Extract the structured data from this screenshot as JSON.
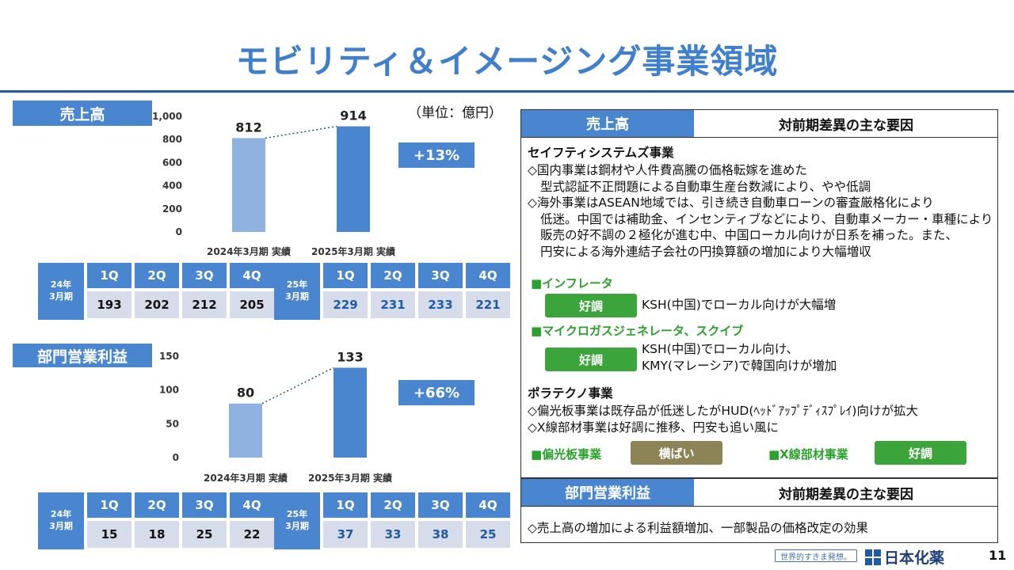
{
  "page": {
    "title": "モビリティ＆イメージング事業領域",
    "unit": "（単位：億円）",
    "page_number": "11",
    "brand": "日本化薬",
    "slogan": "世界的すきま発想。"
  },
  "sales": {
    "tag": "売上高",
    "change": "+13%",
    "bar_labels": [
      "812",
      "914"
    ],
    "quarters": {
      "headers": [
        "1Q",
        "2Q",
        "3Q",
        "4Q"
      ],
      "prev_year_label_1": "24年",
      "prev_year_label_2": "3月期",
      "prev_values": [
        "193",
        "202",
        "212",
        "205"
      ],
      "cur_year_label_1": "25年",
      "cur_year_label_2": "3月期",
      "cur_values": [
        "229",
        "231",
        "233",
        "221"
      ]
    }
  },
  "profit": {
    "tag": "部門営業利益",
    "change": "+66%",
    "bar_labels": [
      "80",
      "133"
    ],
    "quarters": {
      "headers": [
        "1Q",
        "2Q",
        "3Q",
        "4Q"
      ],
      "prev_year_label_1": "24年",
      "prev_year_label_2": "3月期",
      "prev_values": [
        "15",
        "18",
        "25",
        "22"
      ],
      "cur_year_label_1": "25年",
      "cur_year_label_2": "3月期",
      "cur_values": [
        "37",
        "33",
        "38",
        "25"
      ]
    }
  },
  "chart_data": [
    {
      "type": "bar",
      "categories": [
        "2024年3月期 実績",
        "2025年3月期 実績"
      ],
      "values": [
        812,
        914
      ],
      "ylim": [
        0,
        1000
      ],
      "yticks": [
        "0",
        "200",
        "400",
        "600",
        "800",
        "1,000"
      ],
      "ytick_values": [
        0,
        200,
        400,
        600,
        800,
        1000
      ],
      "colors": [
        "#8fb2e0",
        "#4a86cf"
      ],
      "grid": false
    },
    {
      "type": "bar",
      "categories": [
        "2024年3月期 実績",
        "2025年3月期 実績"
      ],
      "values": [
        80,
        133
      ],
      "ylim": [
        0,
        150
      ],
      "yticks": [
        "0",
        "50",
        "100",
        "150"
      ],
      "ytick_values": [
        0,
        50,
        100,
        150
      ],
      "colors": [
        "#8fb2e0",
        "#4a86cf"
      ],
      "grid": false
    }
  ],
  "panel": {
    "tag": "売上高",
    "header": "対前期差異の主な要因",
    "safety_title": "セイフティシステムズ事業",
    "safety_lines": [
      "◇国内事業は鋼材や人件費高騰の価格転嫁を進めた",
      "  型式認証不正問題による自動車生産台数減により、やや低調",
      "◇海外事業はASEAN地域では、引き続き自動車ローンの審査厳格化により",
      "  低迷。中国では補助金、インセンティブなどにより、自動車メーカー・車種により",
      "  販売の好不調の２極化が進む中、中国ローカル向けが日系を補った。また、",
      "  円安による海外連結子会社の円換算額の増加により大幅増収"
    ],
    "inflator_title": "■インフレータ",
    "inflator_badge": "好調",
    "inflator_text": "KSH(中国)でローカル向けが大幅増",
    "mgg_title": "■マイクロガスジェネレータ、スクイブ",
    "mgg_badge": "好調",
    "mgg_text_1": "KSH(中国)でローカル向け、",
    "mgg_text_2": "KMY(マレーシア)で韓国向けが増加",
    "polatechno_title": "ポラテクノ事業",
    "polatechno_lines": [
      "◇偏光板事業は既存品が低迷したがHUD(ﾍｯﾄﾞｱｯﾌﾟﾃﾞｨｽﾌﾟﾚｲ)向けが拡大",
      "◇X線部材事業は好調に推移、円安も追い風に"
    ],
    "polarizer_title": "■偏光板事業",
    "polarizer_badge": "横ばい",
    "xray_title": "■X線部材事業",
    "xray_badge": "好調",
    "profit_tag": "部門営業利益",
    "profit_header": "対前期差異の主な要因",
    "profit_text": "◇売上高の増加による利益額増加、一部製品の価格改定の効果"
  }
}
